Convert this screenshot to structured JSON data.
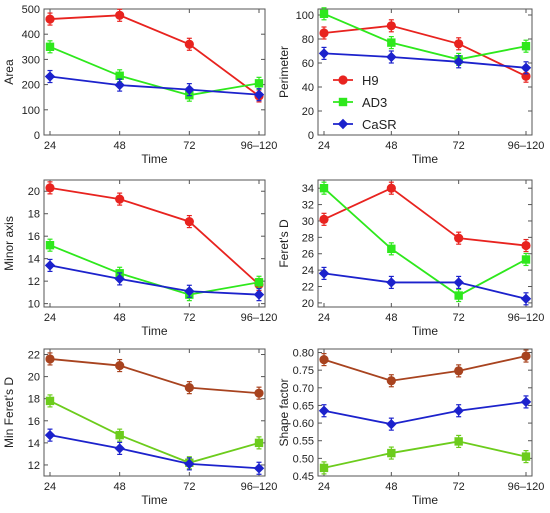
{
  "chart_data": [
    {
      "type": "line",
      "xlabel": "Time",
      "ylabel": "Area",
      "categories": [
        "24",
        "48",
        "72",
        "96–120"
      ],
      "ylim": [
        0,
        500
      ],
      "yticks": [
        0,
        100,
        200,
        300,
        400,
        500
      ],
      "series": [
        {
          "name": "H9",
          "color": "#e8231f",
          "marker": "circle",
          "values": [
            460,
            475,
            360,
            155
          ]
        },
        {
          "name": "AD3",
          "color": "#2ee81c",
          "marker": "square",
          "values": [
            350,
            235,
            158,
            205
          ]
        },
        {
          "name": "CaSR",
          "color": "#1c22cc",
          "marker": "diamond",
          "values": [
            232,
            198,
            180,
            160
          ]
        }
      ]
    },
    {
      "type": "line",
      "xlabel": "Time",
      "ylabel": "Perimeter",
      "categories": [
        "24",
        "48",
        "72",
        "96–120"
      ],
      "ylim": [
        0,
        105
      ],
      "yticks": [
        0,
        20,
        40,
        60,
        80,
        100
      ],
      "legend": "center",
      "series": [
        {
          "name": "H9",
          "color": "#e8231f",
          "marker": "circle",
          "values": [
            85,
            91,
            76,
            49
          ]
        },
        {
          "name": "AD3",
          "color": "#2ee81c",
          "marker": "square",
          "values": [
            101,
            77,
            63,
            74
          ]
        },
        {
          "name": "CaSR",
          "color": "#1c22cc",
          "marker": "diamond",
          "values": [
            68,
            65,
            61,
            56
          ]
        }
      ]
    },
    {
      "type": "line",
      "xlabel": "Time",
      "ylabel": "Minor axis",
      "categories": [
        "24",
        "48",
        "72",
        "96–120"
      ],
      "ylim": [
        9.7,
        21
      ],
      "yticks": [
        10,
        12,
        14,
        16,
        18,
        20
      ],
      "series": [
        {
          "name": "H9",
          "color": "#e8231f",
          "marker": "circle",
          "values": [
            20.3,
            19.3,
            17.3,
            11.7
          ]
        },
        {
          "name": "AD3",
          "color": "#2ee81c",
          "marker": "square",
          "values": [
            15.2,
            12.7,
            10.8,
            11.9
          ]
        },
        {
          "name": "CaSR",
          "color": "#1c22cc",
          "marker": "diamond",
          "values": [
            13.4,
            12.2,
            11.1,
            10.8
          ]
        }
      ]
    },
    {
      "type": "line",
      "xlabel": "Time",
      "ylabel": "Feret's D",
      "categories": [
        "24",
        "48",
        "72",
        "96–120"
      ],
      "ylim": [
        19.5,
        35
      ],
      "yticks": [
        20,
        22,
        24,
        26,
        28,
        30,
        32,
        34
      ],
      "series": [
        {
          "name": "H9",
          "color": "#e8231f",
          "marker": "circle",
          "values": [
            30.2,
            34.0,
            27.9,
            27.0
          ]
        },
        {
          "name": "AD3",
          "color": "#2ee81c",
          "marker": "square",
          "values": [
            34.0,
            26.6,
            20.9,
            25.3
          ]
        },
        {
          "name": "CaSR",
          "color": "#1c22cc",
          "marker": "diamond",
          "values": [
            23.6,
            22.5,
            22.5,
            20.5
          ]
        }
      ]
    },
    {
      "type": "line",
      "xlabel": "Time",
      "ylabel": "Min Feret's D",
      "categories": [
        "24",
        "48",
        "72",
        "96–120"
      ],
      "ylim": [
        11,
        22.5
      ],
      "yticks": [
        12,
        14,
        16,
        18,
        20,
        22
      ],
      "series": [
        {
          "name": "H9",
          "color": "#a8431f",
          "marker": "circle",
          "values": [
            21.6,
            21.0,
            19.0,
            18.5
          ]
        },
        {
          "name": "AD3",
          "color": "#6ccc1c",
          "marker": "square",
          "values": [
            17.8,
            14.7,
            12.2,
            14.0
          ]
        },
        {
          "name": "CaSR",
          "color": "#1c22cc",
          "marker": "diamond",
          "values": [
            14.7,
            13.5,
            12.1,
            11.7
          ]
        }
      ]
    },
    {
      "type": "line",
      "xlabel": "Time",
      "ylabel": "Shape factor",
      "categories": [
        "24",
        "48",
        "72",
        "96–120"
      ],
      "ylim": [
        0.45,
        0.81
      ],
      "yticks": [
        0.45,
        0.5,
        0.55,
        0.6,
        0.65,
        0.7,
        0.75,
        0.8
      ],
      "ytick_labels": [
        "0.45",
        "0.50",
        "0.55",
        "0.60",
        "0.65",
        "0.70",
        "0.75",
        "0.80"
      ],
      "series": [
        {
          "name": "H9",
          "color": "#a8431f",
          "marker": "circle",
          "values": [
            0.78,
            0.72,
            0.748,
            0.79
          ]
        },
        {
          "name": "AD3",
          "color": "#6ccc1c",
          "marker": "square",
          "values": [
            0.473,
            0.515,
            0.548,
            0.505
          ]
        },
        {
          "name": "CaSR",
          "color": "#1c22cc",
          "marker": "diamond",
          "values": [
            0.635,
            0.597,
            0.635,
            0.66
          ]
        }
      ]
    }
  ]
}
